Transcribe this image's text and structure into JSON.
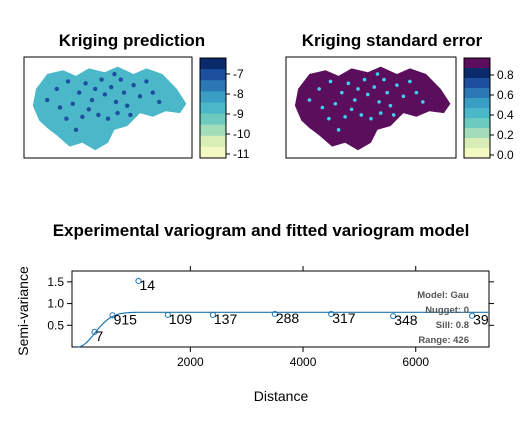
{
  "colors": {
    "map_fill": "#4ab8c8",
    "map_fill_se": "#5a0e5c",
    "map_point": "#1f4da0",
    "map_point_se": "#3fd0f0",
    "variogram_line": "#1f77b4",
    "variogram_points": "#1f77b4",
    "model_text": "#555555"
  },
  "panels": {
    "prediction": {
      "title": "Kriging prediction",
      "legend_ticks": [
        "-7",
        "-8",
        "-9",
        "-10",
        "-11"
      ],
      "legend_colors": [
        "#0b2a6b",
        "#1c4f9e",
        "#2b78b4",
        "#3b9ec4",
        "#4ab8c8",
        "#6ccbbe",
        "#a3dcb8",
        "#d8eeb6",
        "#f3f9c2"
      ]
    },
    "std_error": {
      "title": "Kriging standard error",
      "legend_ticks": [
        "0.8",
        "0.6",
        "0.4",
        "0.2",
        "0.0"
      ],
      "legend_colors": [
        "#5a0e5c",
        "#0b2a6b",
        "#1c4f9e",
        "#2b78b4",
        "#3b9ec4",
        "#4ab8c8",
        "#6ccbbe",
        "#a3dcb8",
        "#d8eeb6",
        "#f3f9c2"
      ]
    }
  },
  "chart_data": {
    "type": "scatter",
    "title": "Experimental variogram and fitted variogram model",
    "xlabel": "Distance",
    "ylabel": "Semi-variance",
    "xlim": [
      -100,
      7300
    ],
    "ylim": [
      0,
      1.75
    ],
    "x_ticks": [
      2000,
      4000,
      6000
    ],
    "y_ticks": [
      0.5,
      1.0,
      1.5
    ],
    "y_tick_labels": [
      "0.5",
      "1.0",
      "1.5"
    ],
    "points": [
      {
        "x": 300,
        "y": 0.35,
        "label": "7"
      },
      {
        "x": 620,
        "y": 0.73,
        "label": "915"
      },
      {
        "x": 1080,
        "y": 1.52,
        "label": "14"
      },
      {
        "x": 1600,
        "y": 0.74,
        "label": "109"
      },
      {
        "x": 2400,
        "y": 0.74,
        "label": "137"
      },
      {
        "x": 3500,
        "y": 0.76,
        "label": "288"
      },
      {
        "x": 4500,
        "y": 0.76,
        "label": "317"
      },
      {
        "x": 5600,
        "y": 0.71,
        "label": "348"
      },
      {
        "x": 7000,
        "y": 0.72,
        "label": "39"
      }
    ],
    "model": {
      "type": "Gaussian",
      "nugget": 0,
      "sill": 0.8,
      "range": 426
    },
    "model_text": [
      "Model: Gau",
      "Nugget: 0",
      "Sill: 0.8",
      "Range: 426"
    ]
  }
}
